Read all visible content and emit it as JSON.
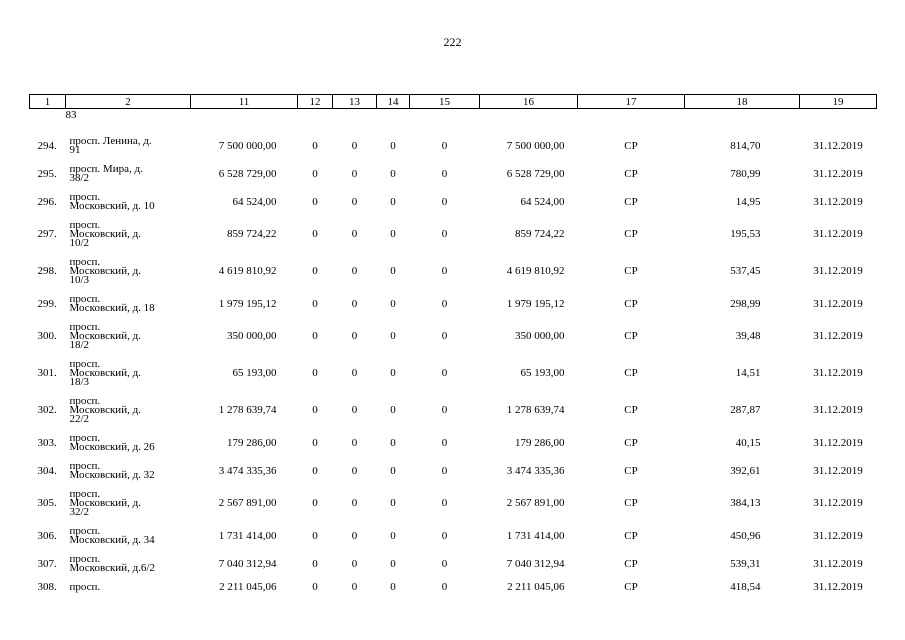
{
  "page": {
    "number": "222",
    "ink_color": "#000000",
    "paper_color": "#ffffff"
  },
  "table": {
    "header": [
      "1",
      "2",
      "11",
      "12",
      "13",
      "14",
      "15",
      "16",
      "17",
      "18",
      "19"
    ],
    "carryover_text": "83",
    "rows": [
      {
        "num": "294.",
        "address": [
          "просп. Ленина, д.",
          "91"
        ],
        "v11": "7 500 000,00",
        "zeros": [
          "0",
          "0",
          "0",
          "0"
        ],
        "v16": "7 500 000,00",
        "v17": "СР",
        "v18": "814,70",
        "v19": "31.12.2019"
      },
      {
        "num": "295.",
        "address": [
          "просп. Мира, д.",
          "38/2"
        ],
        "v11": "6 528 729,00",
        "zeros": [
          "0",
          "0",
          "0",
          "0"
        ],
        "v16": "6 528 729,00",
        "v17": "СР",
        "v18": "780,99",
        "v19": "31.12.2019"
      },
      {
        "num": "296.",
        "address": [
          "просп.",
          "Московский, д. 10"
        ],
        "v11": "64 524,00",
        "zeros": [
          "0",
          "0",
          "0",
          "0"
        ],
        "v16": "64 524,00",
        "v17": "СР",
        "v18": "14,95",
        "v19": "31.12.2019"
      },
      {
        "num": "297.",
        "address": [
          "просп.",
          "Московский, д.",
          "10/2"
        ],
        "v11": "859 724,22",
        "zeros": [
          "0",
          "0",
          "0",
          "0"
        ],
        "v16": "859 724,22",
        "v17": "СР",
        "v18": "195,53",
        "v19": "31.12.2019"
      },
      {
        "num": "298.",
        "address": [
          "просп.",
          "Московский, д.",
          "10/3"
        ],
        "v11": "4 619 810,92",
        "zeros": [
          "0",
          "0",
          "0",
          "0"
        ],
        "v16": "4 619 810,92",
        "v17": "СР",
        "v18": "537,45",
        "v19": "31.12.2019"
      },
      {
        "num": "299.",
        "address": [
          "просп.",
          "Московский, д. 18"
        ],
        "v11": "1 979 195,12",
        "zeros": [
          "0",
          "0",
          "0",
          "0"
        ],
        "v16": "1 979 195,12",
        "v17": "СР",
        "v18": "298,99",
        "v19": "31.12.2019"
      },
      {
        "num": "300.",
        "address": [
          "просп.",
          "Московский, д.",
          "18/2"
        ],
        "v11": "350 000,00",
        "zeros": [
          "0",
          "0",
          "0",
          "0"
        ],
        "v16": "350 000,00",
        "v17": "СР",
        "v18": "39,48",
        "v19": "31.12.2019"
      },
      {
        "num": "301.",
        "address": [
          "просп.",
          "Московский, д.",
          "18/3"
        ],
        "v11": "65 193,00",
        "zeros": [
          "0",
          "0",
          "0",
          "0"
        ],
        "v16": "65 193,00",
        "v17": "СР",
        "v18": "14,51",
        "v19": "31.12.2019"
      },
      {
        "num": "302.",
        "address": [
          "просп.",
          "Московский, д.",
          "22/2"
        ],
        "v11": "1 278 639,74",
        "zeros": [
          "0",
          "0",
          "0",
          "0"
        ],
        "v16": "1 278 639,74",
        "v17": "СР",
        "v18": "287,87",
        "v19": "31.12.2019"
      },
      {
        "num": "303.",
        "address": [
          "просп.",
          "Московский, д. 26"
        ],
        "v11": "179 286,00",
        "zeros": [
          "0",
          "0",
          "0",
          "0"
        ],
        "v16": "179 286,00",
        "v17": "СР",
        "v18": "40,15",
        "v19": "31.12.2019"
      },
      {
        "num": "304.",
        "address": [
          "просп.",
          "Московский, д. 32"
        ],
        "v11": "3 474 335,36",
        "zeros": [
          "0",
          "0",
          "0",
          "0"
        ],
        "v16": "3 474 335,36",
        "v17": "СР",
        "v18": "392,61",
        "v19": "31.12.2019"
      },
      {
        "num": "305.",
        "address": [
          "просп.",
          "Московский, д.",
          "32/2"
        ],
        "v11": "2 567 891,00",
        "zeros": [
          "0",
          "0",
          "0",
          "0"
        ],
        "v16": "2 567 891,00",
        "v17": "СР",
        "v18": "384,13",
        "v19": "31.12.2019"
      },
      {
        "num": "306.",
        "address": [
          "просп.",
          "Московский, д. 34"
        ],
        "v11": "1 731 414,00",
        "zeros": [
          "0",
          "0",
          "0",
          "0"
        ],
        "v16": "1 731 414,00",
        "v17": "СР",
        "v18": "450,96",
        "v19": "31.12.2019"
      },
      {
        "num": "307.",
        "address": [
          "просп.",
          "Московский, д.6/2"
        ],
        "v11": "7 040 312,94",
        "zeros": [
          "0",
          "0",
          "0",
          "0"
        ],
        "v16": "7 040 312,94",
        "v17": "СР",
        "v18": "539,31",
        "v19": "31.12.2019"
      },
      {
        "num": "308.",
        "address": [
          "просп."
        ],
        "v11": "2 211 045,06",
        "zeros": [
          "0",
          "0",
          "0",
          "0"
        ],
        "v16": "2 211 045,06",
        "v17": "СР",
        "v18": "418,54",
        "v19": "31.12.2019"
      }
    ]
  }
}
